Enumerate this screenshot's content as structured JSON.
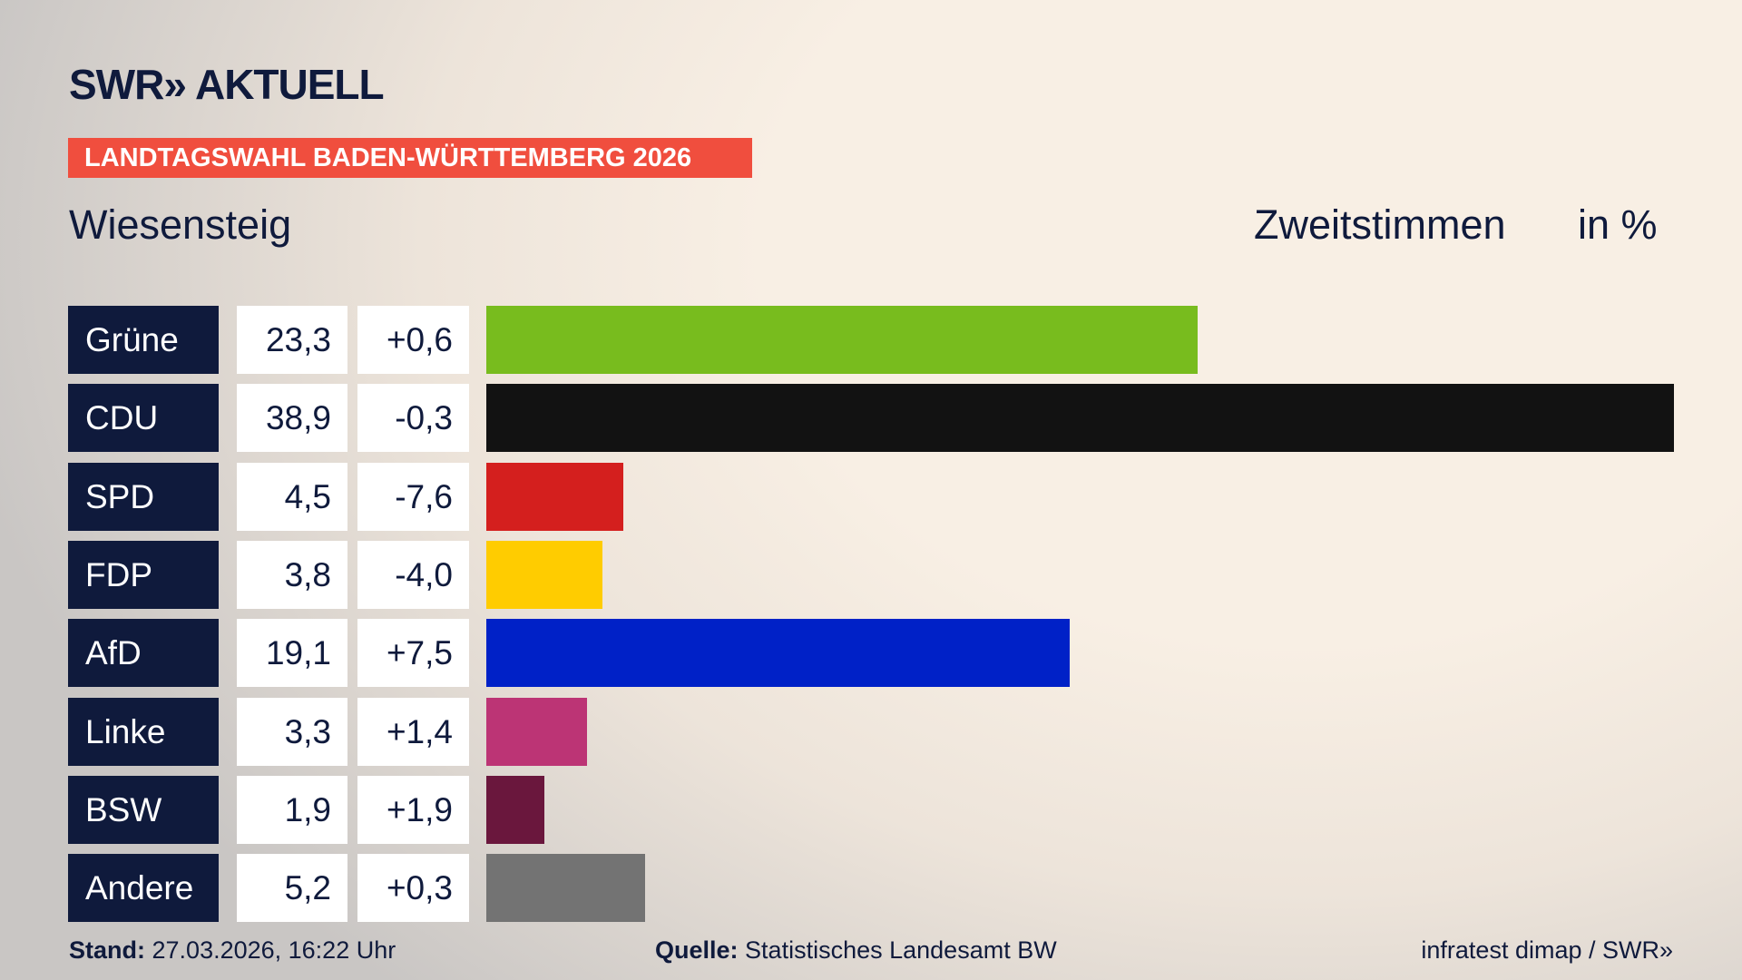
{
  "header": {
    "logo": "SWR» AKTUELL",
    "banner": "LANDTAGSWAHL BADEN-WÜRTTEMBERG 2026",
    "location": "Wiesensteig",
    "measure": "Zweitstimmen",
    "unit": "in %"
  },
  "chart_data": {
    "type": "bar",
    "orientation": "horizontal",
    "categories": [
      "Grüne",
      "CDU",
      "SPD",
      "FDP",
      "AfD",
      "Linke",
      "BSW",
      "Andere"
    ],
    "values": [
      23.3,
      38.9,
      4.5,
      3.8,
      19.1,
      3.3,
      1.9,
      5.2
    ],
    "value_labels": [
      "23,3",
      "38,9",
      "4,5",
      "3,8",
      "19,1",
      "3,3",
      "1,9",
      "5,2"
    ],
    "changes": [
      0.6,
      -0.3,
      -7.6,
      -4.0,
      7.5,
      1.4,
      1.9,
      0.3
    ],
    "change_labels": [
      "+0,6",
      "-0,3",
      "-7,6",
      "-4,0",
      "+7,5",
      "+1,4",
      "+1,9",
      "+0,3"
    ],
    "colors": [
      "#78bc1e",
      "#121212",
      "#d41f1e",
      "#ffcc00",
      "#0021c7",
      "#bc3475",
      "#6a173d",
      "#737373"
    ]
  },
  "footer": {
    "stand_label": "Stand:",
    "stand": "27.03.2026, 16:22 Uhr",
    "source_label": "Quelle:",
    "source": "Statistisches Landesamt BW",
    "credit": "infratest dimap / SWR»"
  }
}
